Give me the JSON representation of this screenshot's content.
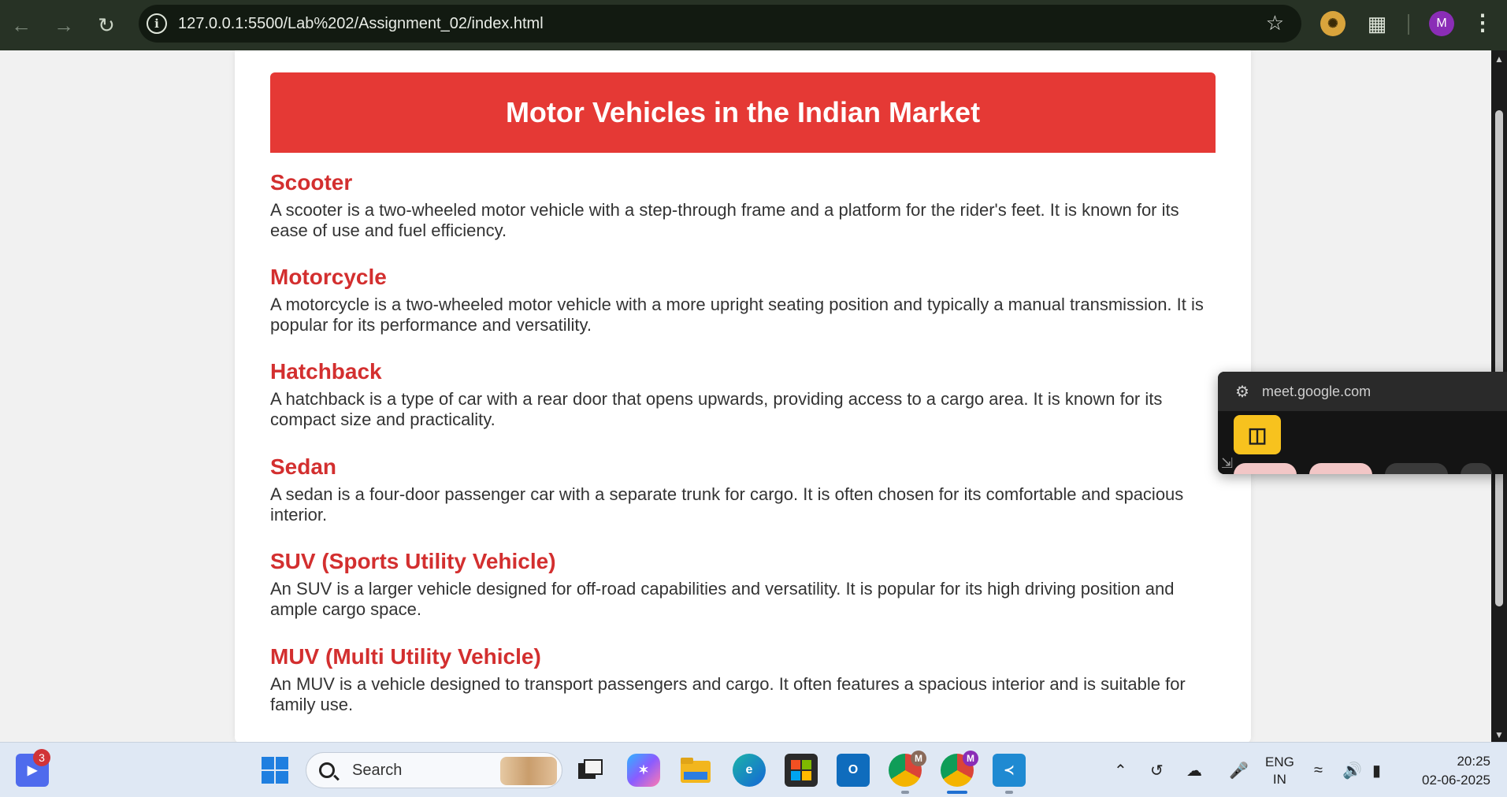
{
  "browser": {
    "url": "127.0.0.1:5500/Lab%202/Assignment_02/index.html",
    "profile_initial": "M"
  },
  "page": {
    "title": "Motor Vehicles in the Indian Market",
    "sections": [
      {
        "heading": "Scooter",
        "text": "A scooter is a two-wheeled motor vehicle with a step-through frame and a platform for the rider's feet. It is known for its ease of use and fuel efficiency."
      },
      {
        "heading": "Motorcycle",
        "text": "A motorcycle is a two-wheeled motor vehicle with a more upright seating position and typically a manual transmission. It is popular for its performance and versatility."
      },
      {
        "heading": "Hatchback",
        "text": "A hatchback is a type of car with a rear door that opens upwards, providing access to a cargo area. It is known for its compact size and practicality."
      },
      {
        "heading": "Sedan",
        "text": "A sedan is a four-door passenger car with a separate trunk for cargo. It is often chosen for its comfortable and spacious interior."
      },
      {
        "heading": "SUV (Sports Utility Vehicle)",
        "text": "An SUV is a larger vehicle designed for off-road capabilities and versatility. It is popular for its high driving position and ample cargo space."
      },
      {
        "heading": "MUV (Multi Utility Vehicle)",
        "text": "An MUV is a vehicle designed to transport passengers and cargo. It often features a spacious interior and is suitable for family use."
      }
    ]
  },
  "pip": {
    "url": "meet.google.com"
  },
  "taskbar": {
    "notification_count": "3",
    "search_label": "Search",
    "chrome_profile_1": "M",
    "chrome_profile_2": "M",
    "lang_line1": "ENG",
    "lang_line2": "IN",
    "time": "20:25",
    "date": "02-06-2025"
  },
  "colors": {
    "banner": "#e53935",
    "heading": "#d32f2f",
    "toolbar": "#273225"
  }
}
